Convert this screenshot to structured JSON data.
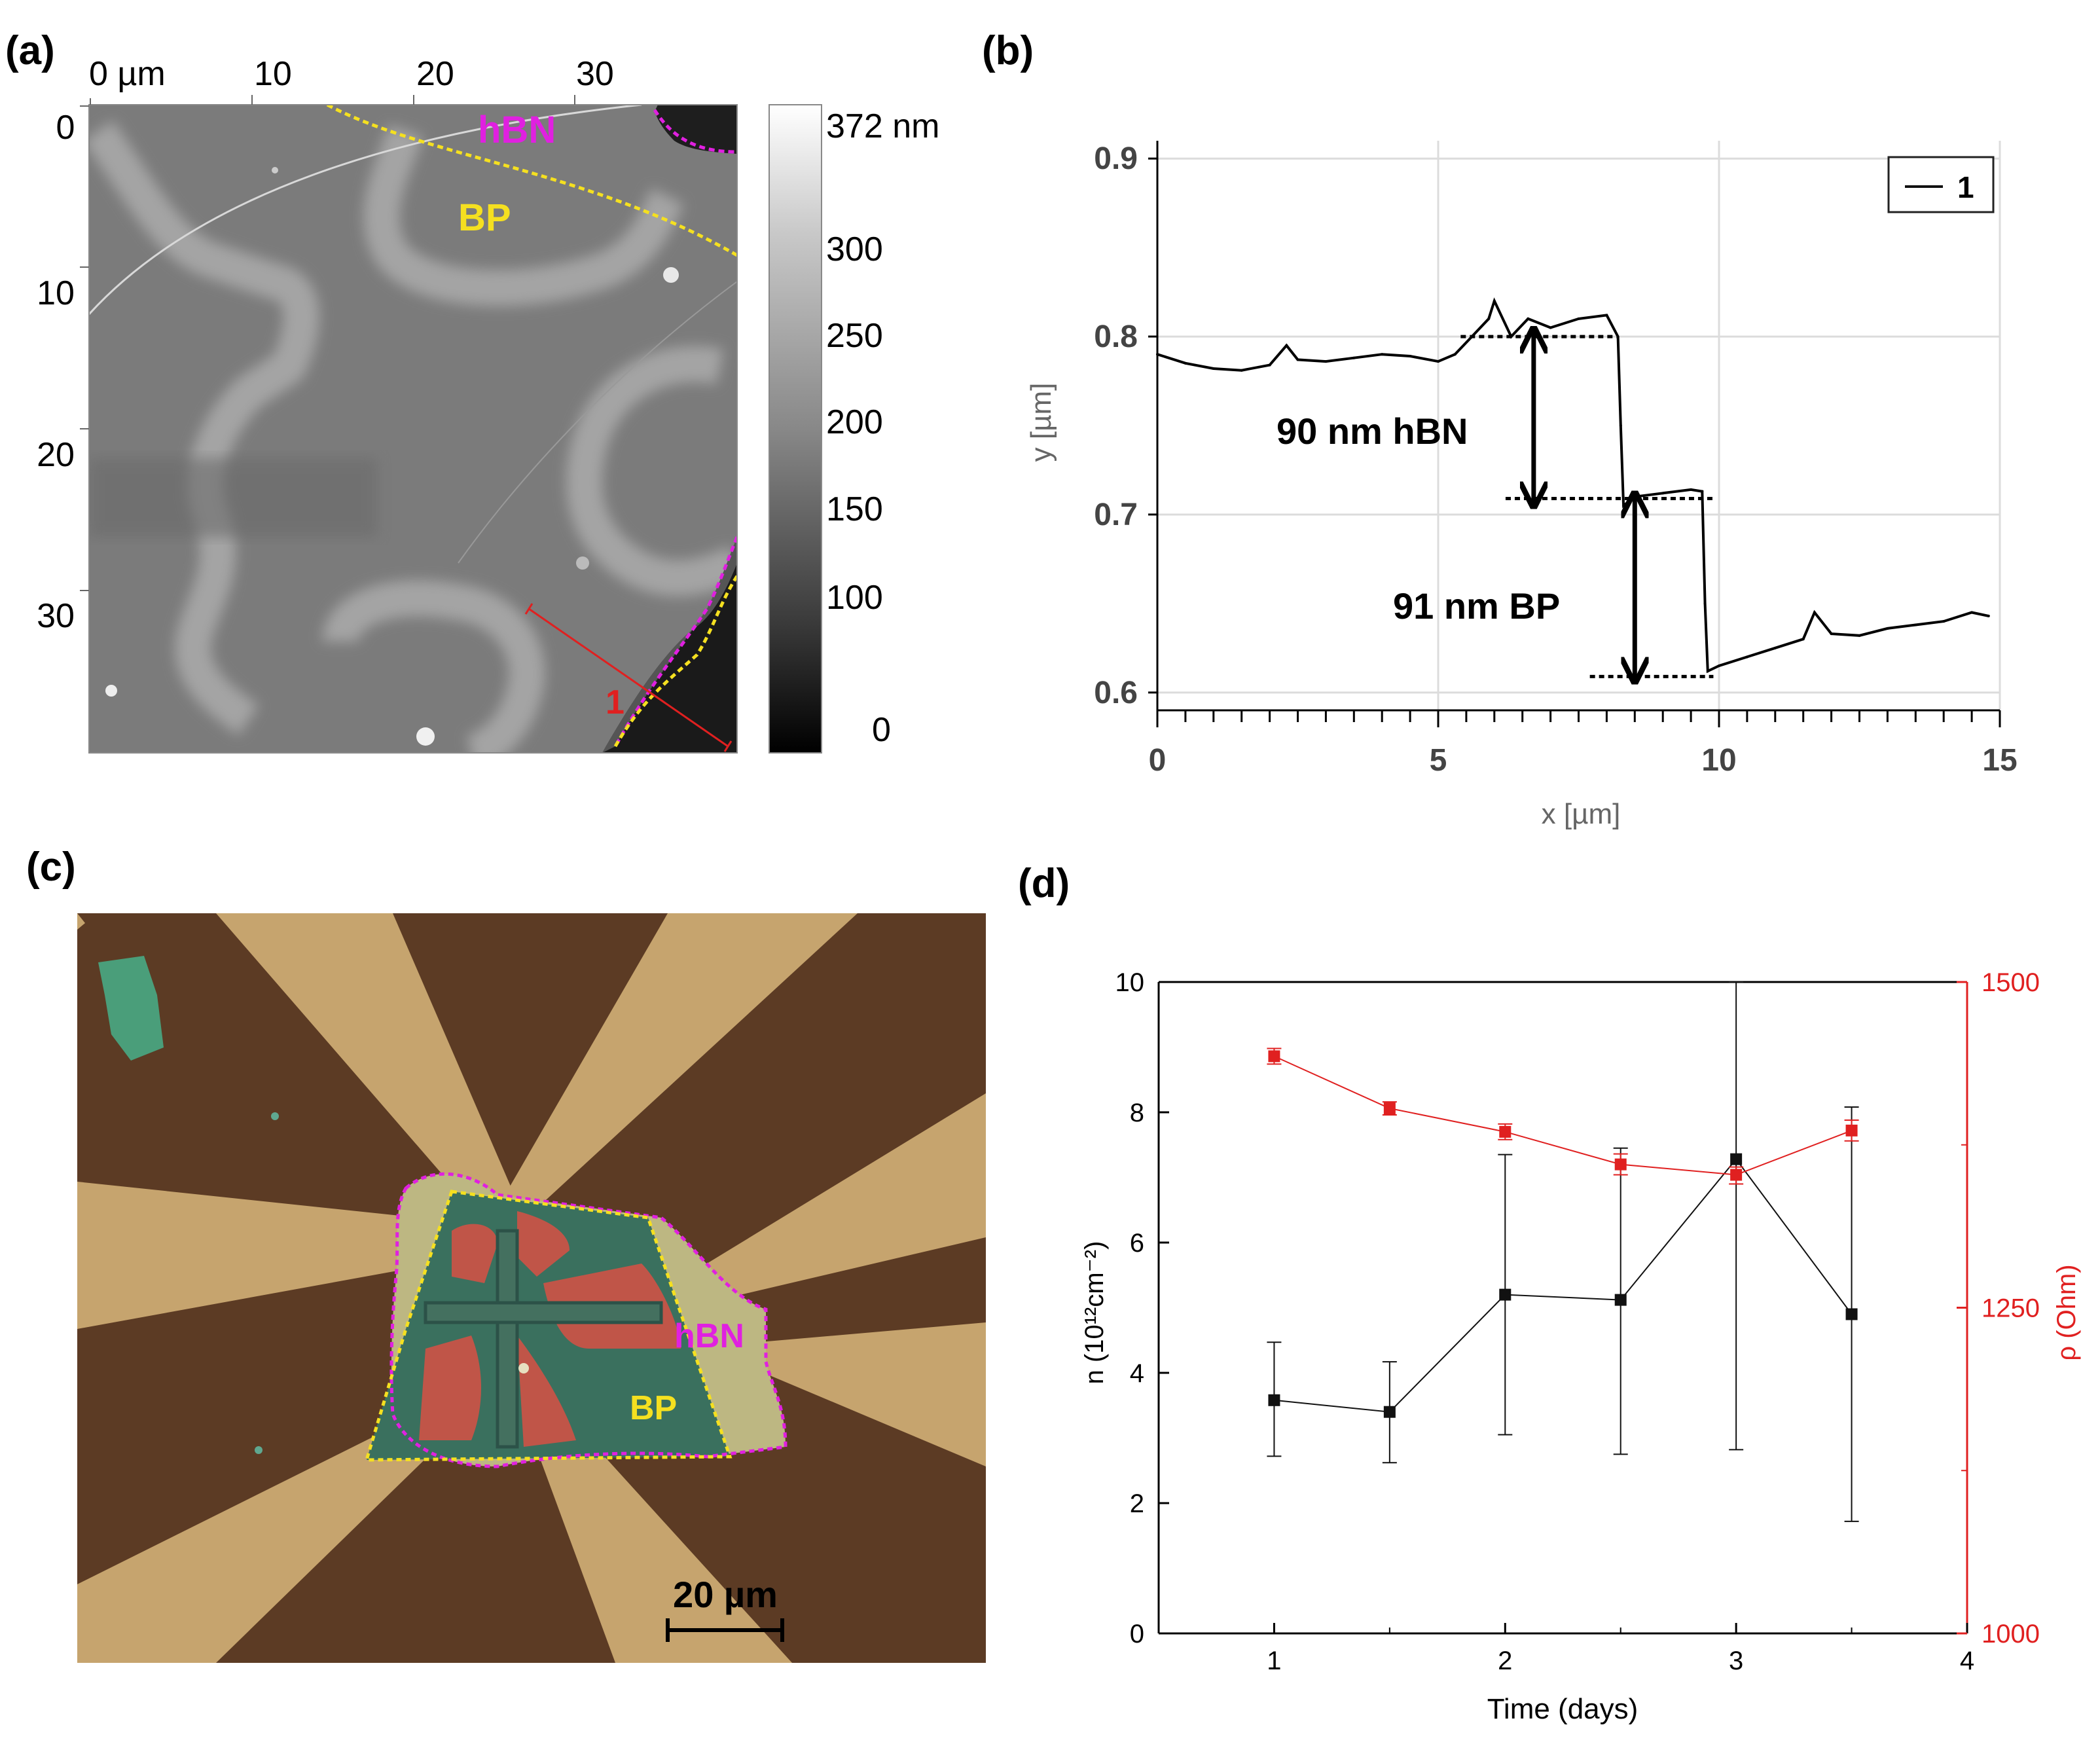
{
  "panel_labels": {
    "a": "(a)",
    "b": "(b)",
    "c": "(c)",
    "d": "(d)"
  },
  "colors": {
    "hbn": "#e020e0",
    "bp": "#f5e020",
    "rho": "#e02020",
    "n": "#111111",
    "marker": "#e03030"
  },
  "panel_a": {
    "x_ticks": [
      "0 µm",
      "10",
      "20",
      "30"
    ],
    "y_ticks": [
      "0",
      "10",
      "20",
      "30"
    ],
    "colorbar_labels": [
      "372 nm",
      "300",
      "250",
      "200",
      "150",
      "100",
      "0"
    ],
    "hbn_label": "hBN",
    "bp_label": "BP",
    "profile_label": "1"
  },
  "panel_c": {
    "hbn_label": "hBN",
    "bp_label": "BP",
    "scale_bar": "20 µm"
  },
  "chart_data": [
    {
      "type": "line",
      "panel": "b",
      "title": "",
      "xlabel": "x [µm]",
      "ylabel": "y [µm]",
      "xlim": [
        0,
        15
      ],
      "ylim": [
        0.59,
        0.91
      ],
      "x_ticks": [
        0,
        5,
        10,
        15
      ],
      "y_ticks": [
        0.6,
        0.7,
        0.8,
        0.9
      ],
      "y_tick_labels": [
        "0.6",
        "0.7",
        "0.8",
        "0.9"
      ],
      "grid": true,
      "legend": {
        "position": "top-right",
        "entries": [
          "1"
        ]
      },
      "series": [
        {
          "name": "1",
          "x": [
            0,
            0.5,
            1,
            1.5,
            2,
            2.3,
            2.5,
            3,
            3.5,
            4,
            4.5,
            5,
            5.3,
            5.6,
            5.9,
            6.0,
            6.3,
            6.6,
            7,
            7.5,
            8,
            8.2,
            8.25,
            8.3,
            8.5,
            9,
            9.5,
            9.7,
            9.75,
            9.8,
            10,
            10.5,
            11,
            11.5,
            11.7,
            12,
            12.5,
            13,
            13.5,
            14,
            14.5,
            14.8
          ],
          "values": [
            0.79,
            0.785,
            0.782,
            0.781,
            0.784,
            0.795,
            0.787,
            0.786,
            0.788,
            0.79,
            0.789,
            0.786,
            0.79,
            0.8,
            0.81,
            0.82,
            0.8,
            0.81,
            0.805,
            0.81,
            0.812,
            0.8,
            0.75,
            0.705,
            0.71,
            0.712,
            0.714,
            0.713,
            0.65,
            0.612,
            0.615,
            0.62,
            0.625,
            0.63,
            0.645,
            0.633,
            0.632,
            0.636,
            0.638,
            0.64,
            0.645,
            0.643
          ]
        }
      ],
      "annotations": [
        {
          "text": "90 nm hBN",
          "upper_level": 0.8,
          "lower_level": 0.709
        },
        {
          "text": "91 nm BP",
          "upper_level": 0.709,
          "lower_level": 0.609
        }
      ]
    },
    {
      "type": "scatter",
      "panel": "d",
      "xlabel": "Time (days)",
      "ylabel_left": "n (10¹²cm⁻²)",
      "ylabel_right": "ρ (Ohm)",
      "xlim": [
        0.5,
        4
      ],
      "ylim_left": [
        0,
        10
      ],
      "ylim_right": [
        1000,
        1500
      ],
      "x_ticks": [
        1,
        2,
        3,
        4
      ],
      "y_ticks_left": [
        0,
        2,
        4,
        6,
        8,
        10
      ],
      "y_ticks_right": [
        1000,
        1250,
        1500
      ],
      "series": [
        {
          "name": "n",
          "axis": "left",
          "color": "#111111",
          "x": [
            1,
            1.5,
            2,
            2.5,
            3,
            3.5
          ],
          "values": [
            3.58,
            3.4,
            5.2,
            5.12,
            7.28,
            4.9
          ],
          "err_low": [
            2.72,
            2.62,
            3.05,
            2.75,
            2.82,
            1.72
          ],
          "err_high": [
            4.47,
            4.17,
            7.35,
            7.45,
            10.0,
            8.08
          ]
        },
        {
          "name": "rho",
          "axis": "right",
          "color": "#e02020",
          "x": [
            1,
            1.5,
            2,
            2.5,
            3,
            3.5
          ],
          "values": [
            1443,
            1403,
            1385,
            1360,
            1352,
            1386
          ],
          "err_low": [
            1437,
            1398,
            1379,
            1352,
            1345,
            1378
          ],
          "err_high": [
            1449,
            1408,
            1391,
            1368,
            1358,
            1394
          ]
        }
      ]
    }
  ]
}
